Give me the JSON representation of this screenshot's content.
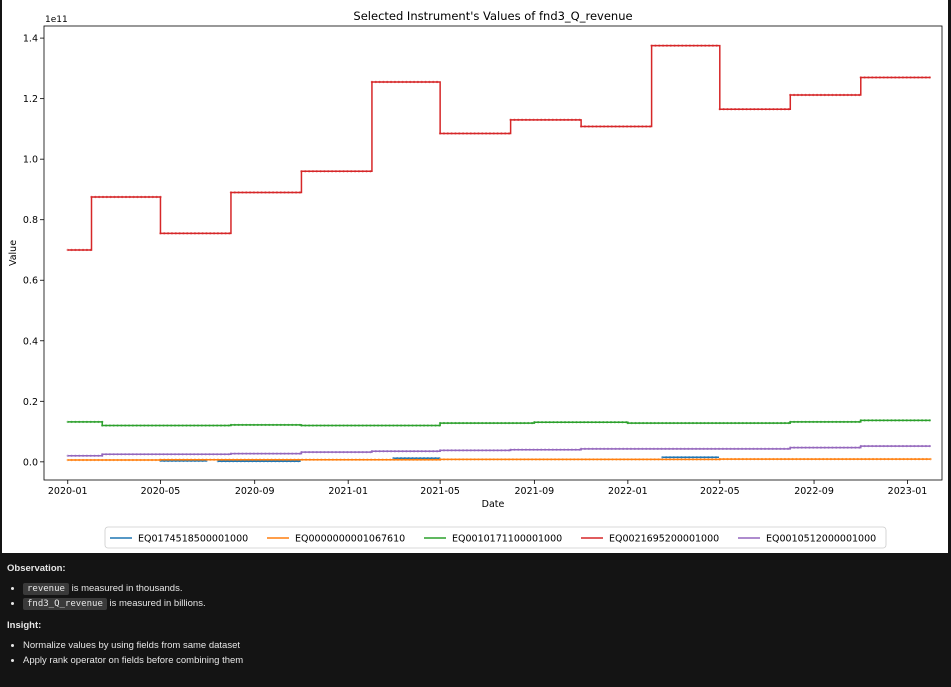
{
  "chart_data": {
    "type": "line",
    "title": "Selected Instrument's Values of fnd3_Q_revenue",
    "xlabel": "Date",
    "ylabel": "Value",
    "y_offset_label": "1e11",
    "y_scale": 100000000000.0,
    "ylim": [
      -0.06,
      1.44
    ],
    "xlim": [
      "2019-12-01",
      "2023-02-15"
    ],
    "x_ticks": [
      "2020-01",
      "2020-05",
      "2020-09",
      "2021-01",
      "2021-05",
      "2021-09",
      "2022-01",
      "2022-05",
      "2022-09",
      "2023-01"
    ],
    "y_ticks": [
      "0.0",
      "0.2",
      "0.4",
      "0.6",
      "0.8",
      "1.0",
      "1.2",
      "1.4"
    ],
    "legend_position": "bottom",
    "grid": false,
    "series": [
      {
        "name": "EQ0174518500001000",
        "color": "#1f77b4",
        "steps": [
          [
            "2020-05-01",
            "2020-06-30",
            0.003
          ],
          [
            "2020-07-15",
            "2020-10-31",
            0.002
          ],
          [
            "2021-03-01",
            "2021-04-30",
            0.012
          ],
          [
            "2022-02-15",
            "2022-04-30",
            0.015
          ]
        ]
      },
      {
        "name": "EQ0000000001067610",
        "color": "#ff7f0e",
        "steps": [
          [
            "2020-01-01",
            "2020-05-01",
            0.006
          ],
          [
            "2020-05-01",
            "2021-05-01",
            0.007
          ],
          [
            "2021-05-01",
            "2022-05-01",
            0.008
          ],
          [
            "2022-05-01",
            "2023-01-31",
            0.009
          ]
        ]
      },
      {
        "name": "EQ0010171100001000",
        "color": "#2ca02c",
        "steps": [
          [
            "2020-01-01",
            "2020-02-15",
            0.132
          ],
          [
            "2020-02-15",
            "2020-08-01",
            0.12
          ],
          [
            "2020-08-01",
            "2020-11-01",
            0.122
          ],
          [
            "2020-11-01",
            "2021-05-01",
            0.12
          ],
          [
            "2021-05-01",
            "2021-09-01",
            0.128
          ],
          [
            "2021-09-01",
            "2022-01-01",
            0.131
          ],
          [
            "2022-01-01",
            "2022-08-01",
            0.128
          ],
          [
            "2022-08-01",
            "2022-11-01",
            0.132
          ],
          [
            "2022-11-01",
            "2023-01-31",
            0.137
          ]
        ]
      },
      {
        "name": "EQ0021695200001000",
        "color": "#d62728",
        "steps": [
          [
            "2020-01-01",
            "2020-02-01",
            0.7
          ],
          [
            "2020-02-01",
            "2020-05-01",
            0.875
          ],
          [
            "2020-05-01",
            "2020-08-01",
            0.755
          ],
          [
            "2020-08-01",
            "2020-11-01",
            0.89
          ],
          [
            "2020-11-01",
            "2021-02-01",
            0.96
          ],
          [
            "2021-02-01",
            "2021-05-01",
            1.255
          ],
          [
            "2021-05-01",
            "2021-08-01",
            1.085
          ],
          [
            "2021-08-01",
            "2021-11-01",
            1.13
          ],
          [
            "2021-11-01",
            "2022-02-01",
            1.108
          ],
          [
            "2022-02-01",
            "2022-05-01",
            1.375
          ],
          [
            "2022-05-01",
            "2022-08-01",
            1.165
          ],
          [
            "2022-08-01",
            "2022-11-01",
            1.212
          ],
          [
            "2022-11-01",
            "2023-01-31",
            1.27
          ]
        ]
      },
      {
        "name": "EQ0010512000001000",
        "color": "#9467bd",
        "steps": [
          [
            "2020-01-01",
            "2020-02-15",
            0.02
          ],
          [
            "2020-02-15",
            "2020-08-01",
            0.025
          ],
          [
            "2020-08-01",
            "2020-11-01",
            0.027
          ],
          [
            "2020-11-01",
            "2021-02-01",
            0.032
          ],
          [
            "2021-02-01",
            "2021-05-01",
            0.035
          ],
          [
            "2021-05-01",
            "2021-08-01",
            0.038
          ],
          [
            "2021-08-01",
            "2021-11-01",
            0.04
          ],
          [
            "2021-11-01",
            "2022-08-01",
            0.043
          ],
          [
            "2022-08-01",
            "2022-11-01",
            0.047
          ],
          [
            "2022-11-01",
            "2023-01-31",
            0.052
          ]
        ]
      }
    ]
  },
  "notes": {
    "observation_heading": "Observation:",
    "observations": [
      {
        "code": "revenue",
        "text": "is measured in thousands."
      },
      {
        "code": "fnd3_Q_revenue",
        "text": "is measured in billions."
      }
    ],
    "insight_heading": "Insight:",
    "insights": [
      "Normalize values by using fields from same dataset",
      "Apply rank operator on fields before combining them"
    ]
  }
}
